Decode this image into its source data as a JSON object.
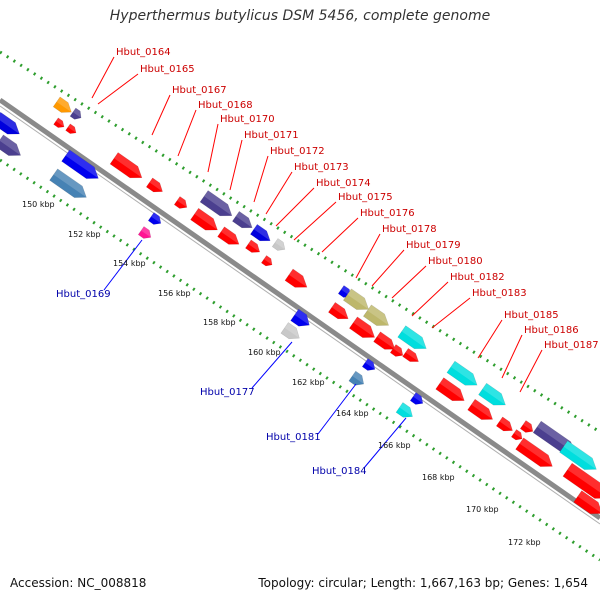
{
  "title": "Hyperthermus butylicus DSM 5456, complete genome",
  "accession": "Accession: NC_008818",
  "summary": "Topology: circular; Length: 1,667,163 bp; Genes: 1,654",
  "colors": {
    "forward": "#ff0000",
    "reverse": "#0000ff",
    "backbone": "#8a8a8a",
    "gc_dots": "#33aa33",
    "tick_green": "#2a9a2a",
    "label_forward": "#cc0000",
    "label_reverse": "#0000aa"
  },
  "ticks": [
    "150 kbp",
    "152 kbp",
    "154 kbp",
    "156 kbp",
    "158 kbp",
    "160 kbp",
    "162 kbp",
    "164 kbp",
    "166 kbp",
    "168 kbp",
    "170 kbp",
    "172 kbp"
  ],
  "forward_labels": [
    "Hbut_0164",
    "Hbut_0165",
    "Hbut_0167",
    "Hbut_0168",
    "Hbut_0170",
    "Hbut_0171",
    "Hbut_0172",
    "Hbut_0173",
    "Hbut_0174",
    "Hbut_0175",
    "Hbut_0176",
    "Hbut_0178",
    "Hbut_0179",
    "Hbut_0180",
    "Hbut_0182",
    "Hbut_0183",
    "Hbut_0185",
    "Hbut_0186",
    "Hbut_0187"
  ],
  "reverse_labels": [
    "Hbut_0169",
    "Hbut_0177",
    "Hbut_0181",
    "Hbut_0184"
  ]
}
